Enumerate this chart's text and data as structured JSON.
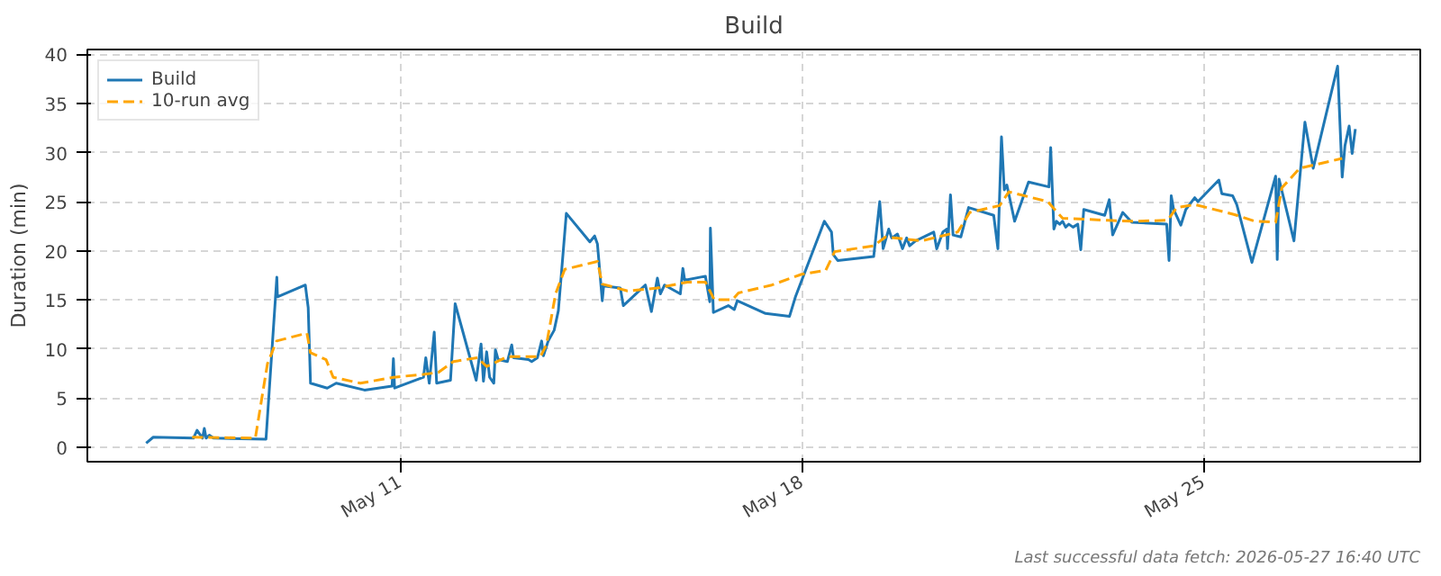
{
  "chart_data": {
    "type": "line",
    "title": "Build",
    "ylabel": "Duration (min)",
    "xlim": [
      "2026-05-05T13:00",
      "2026-05-28T18:30"
    ],
    "ylim": [
      -1.5,
      40.5
    ],
    "xticks": [
      {
        "value": "2026-05-11",
        "label": "May 11"
      },
      {
        "value": "2026-05-18",
        "label": "May 18"
      },
      {
        "value": "2026-05-25",
        "label": "May 25"
      }
    ],
    "yticks": [
      0,
      5,
      10,
      15,
      20,
      25,
      30,
      35,
      40
    ],
    "grid": true,
    "legend": "top left",
    "marker": "none",
    "annotations": [
      "Last successful data fetch: 2026-05-27 16:40 UTC"
    ],
    "series": [
      {
        "name": "Build",
        "color": "#1f77b4",
        "line_style": "solid",
        "x": [
          "2026-05-06T13:36",
          "2026-05-06T16:34",
          "2026-05-07T09:22",
          "2026-05-07T10:53",
          "2026-05-07T13:10",
          "2026-05-07T13:55",
          "2026-05-07T14:40",
          "2026-05-07T16:00",
          "2026-05-07T17:45",
          "2026-05-08T15:43",
          "2026-05-08T20:15",
          "2026-05-08T20:30",
          "2026-05-09T08:10",
          "2026-05-09T09:22",
          "2026-05-09T10:20",
          "2026-05-09T17:20",
          "2026-05-09T21:05",
          "2026-05-10T08:55",
          "2026-05-10T20:27",
          "2026-05-10T21:00",
          "2026-05-10T21:30",
          "2026-05-11T09:35",
          "2026-05-11T10:33",
          "2026-05-11T12:00",
          "2026-05-11T14:05",
          "2026-05-11T15:05",
          "2026-05-11T20:53",
          "2026-05-11T22:50",
          "2026-05-12T07:38",
          "2026-05-12T09:40",
          "2026-05-12T10:40",
          "2026-05-12T12:00",
          "2026-05-12T13:15",
          "2026-05-12T15:00",
          "2026-05-12T15:40",
          "2026-05-12T16:50",
          "2026-05-12T20:40",
          "2026-05-12T22:30",
          "2026-05-12T23:15",
          "2026-05-13T05:30",
          "2026-05-13T06:50",
          "2026-05-13T09:15",
          "2026-05-13T11:00",
          "2026-05-13T11:45",
          "2026-05-13T13:45",
          "2026-05-13T16:15",
          "2026-05-13T18:00",
          "2026-05-13T21:20",
          "2026-05-14T07:10",
          "2026-05-14T09:10",
          "2026-05-14T10:20",
          "2026-05-14T12:22",
          "2026-05-14T12:55",
          "2026-05-14T19:55",
          "2026-05-14T21:10",
          "2026-05-15T06:25",
          "2026-05-15T08:55",
          "2026-05-15T11:25",
          "2026-05-15T12:40",
          "2026-05-15T14:25",
          "2026-05-15T21:00",
          "2026-05-15T22:05",
          "2026-05-15T22:50",
          "2026-05-16T07:30",
          "2026-05-16T09:20",
          "2026-05-16T09:35",
          "2026-05-16T10:50",
          "2026-05-16T17:05",
          "2026-05-16T19:35",
          "2026-05-16T20:50",
          "2026-05-17T08:40",
          "2026-05-17T18:40",
          "2026-05-17T21:10",
          "2026-05-18T09:15",
          "2026-05-18T12:15",
          "2026-05-18T13:00",
          "2026-05-18T14:50",
          "2026-05-19T05:53",
          "2026-05-19T08:25",
          "2026-05-19T09:50",
          "2026-05-19T12:10",
          "2026-05-19T13:25",
          "2026-05-19T15:50",
          "2026-05-19T17:55",
          "2026-05-19T19:40",
          "2026-05-19T20:55",
          "2026-05-19T23:25",
          "2026-05-20T07:00",
          "2026-05-20T08:15",
          "2026-05-20T10:50",
          "2026-05-20T12:30",
          "2026-05-20T12:45",
          "2026-05-20T14:00",
          "2026-05-20T15:05",
          "2026-05-20T18:20",
          "2026-05-20T21:35",
          "2026-05-21T08:05",
          "2026-05-21T09:50",
          "2026-05-21T11:20",
          "2026-05-21T12:30",
          "2026-05-21T13:35",
          "2026-05-21T16:50",
          "2026-05-21T22:40",
          "2026-05-22T07:10",
          "2026-05-22T07:55",
          "2026-05-22T09:15",
          "2026-05-22T10:20",
          "2026-05-22T11:40",
          "2026-05-22T12:55",
          "2026-05-22T14:10",
          "2026-05-22T15:30",
          "2026-05-22T17:15",
          "2026-05-22T19:15",
          "2026-05-22T20:30",
          "2026-05-22T21:45",
          "2026-05-23T06:30",
          "2026-05-23T08:25",
          "2026-05-23T09:50",
          "2026-05-23T14:02",
          "2026-05-23T17:50",
          "2026-05-24T08:25",
          "2026-05-24T09:25",
          "2026-05-24T10:20",
          "2026-05-24T11:20",
          "2026-05-24T14:20",
          "2026-05-24T16:26",
          "2026-05-24T20:10",
          "2026-05-24T21:30",
          "2026-05-25T06:15",
          "2026-05-25T07:30",
          "2026-05-25T12:00",
          "2026-05-25T13:45",
          "2026-05-25T20:05",
          "2026-05-26T06:00",
          "2026-05-26T06:40",
          "2026-05-26T07:25",
          "2026-05-26T13:40",
          "2026-05-26T18:15",
          "2026-05-26T21:43",
          "2026-05-27T07:55",
          "2026-05-27T09:50",
          "2026-05-27T11:00",
          "2026-05-27T12:45",
          "2026-05-27T14:00",
          "2026-05-27T15:20"
        ],
        "values": [
          0.4,
          1.0,
          0.9,
          1.7,
          0.9,
          1.9,
          0.9,
          1.2,
          0.9,
          0.8,
          17.3,
          15.3,
          16.5,
          14.2,
          6.5,
          6.0,
          6.5,
          5.8,
          6.2,
          9.0,
          6.0,
          7.1,
          9.1,
          6.5,
          11.7,
          6.5,
          6.8,
          14.6,
          6.8,
          10.5,
          6.7,
          9.7,
          7.1,
          6.5,
          9.9,
          8.9,
          8.7,
          10.4,
          9.1,
          8.9,
          8.7,
          9.1,
          10.8,
          9.3,
          10.8,
          11.9,
          13.9,
          23.8,
          20.9,
          21.5,
          20.7,
          14.9,
          16.4,
          16.2,
          14.4,
          16.5,
          13.8,
          17.2,
          15.6,
          16.5,
          15.6,
          18.2,
          17.0,
          17.4,
          14.8,
          22.3,
          13.7,
          14.4,
          14.0,
          14.9,
          13.6,
          13.3,
          15.3,
          23.0,
          21.9,
          19.6,
          19.0,
          19.4,
          25.0,
          20.2,
          22.2,
          21.3,
          21.7,
          20.2,
          21.3,
          20.5,
          21.0,
          21.9,
          20.2,
          21.9,
          22.2,
          20.2,
          25.7,
          21.6,
          21.4,
          24.4,
          23.6,
          20.2,
          31.6,
          26.2,
          26.7,
          23.0,
          27.0,
          26.5,
          30.5,
          22.2,
          23.0,
          22.7,
          23.0,
          22.4,
          22.7,
          22.4,
          22.7,
          20.1,
          24.2,
          23.6,
          25.2,
          21.6,
          23.9,
          22.9,
          22.7,
          19.0,
          25.6,
          24.2,
          22.6,
          24.2,
          25.4,
          25.0,
          27.2,
          25.8,
          25.6,
          24.7,
          18.8,
          27.6,
          19.1,
          27.3,
          21.0,
          33.1,
          28.4,
          38.8,
          27.5,
          30.7,
          32.7,
          29.9,
          32.4
        ]
      },
      {
        "name": "10-run avg",
        "color": "#ffa500",
        "line_style": "dashed",
        "x": [
          "2026-05-07T08:50",
          "2026-05-08T11:15",
          "2026-05-08T16:20",
          "2026-05-08T20:10",
          "2026-05-09T08:50",
          "2026-05-09T10:20",
          "2026-05-09T16:50",
          "2026-05-09T19:50",
          "2026-05-10T07:10",
          "2026-05-10T21:00",
          "2026-05-11T09:35",
          "2026-05-11T15:50",
          "2026-05-11T22:05",
          "2026-05-12T08:10",
          "2026-05-12T12:00",
          "2026-05-12T20:40",
          "2026-05-13T10:30",
          "2026-05-13T13:00",
          "2026-05-13T16:50",
          "2026-05-13T20:40",
          "2026-05-14T10:20",
          "2026-05-14T12:22",
          "2026-05-14T22:55",
          "2026-05-15T11:25",
          "2026-05-16T00:00",
          "2026-05-16T07:30",
          "2026-05-16T11:15",
          "2026-05-16T18:50",
          "2026-05-16T21:20",
          "2026-05-17T11:15",
          "2026-05-17T23:45",
          "2026-05-18T09:50",
          "2026-05-18T13:33",
          "2026-05-19T05:53",
          "2026-05-19T10:50",
          "2026-05-20T01:55",
          "2026-05-20T17:00",
          "2026-05-20T22:05",
          "2026-05-21T10:35",
          "2026-05-21T14:25",
          "2026-05-22T06:40",
          "2026-05-22T12:55",
          "2026-05-23T07:48",
          "2026-05-23T17:50",
          "2026-05-24T08:50",
          "2026-05-24T12:40",
          "2026-05-24T20:10",
          "2026-05-25T12:30",
          "2026-05-25T21:20",
          "2026-05-26T06:00",
          "2026-05-26T08:35",
          "2026-05-26T16:05",
          "2026-05-27T09:50"
        ],
        "values": [
          1.0,
          0.9,
          8.5,
          10.8,
          11.6,
          9.6,
          8.9,
          7.1,
          6.5,
          7.1,
          7.4,
          7.6,
          8.7,
          9.1,
          8.2,
          9.2,
          9.2,
          10.4,
          15.6,
          18.1,
          18.9,
          16.6,
          15.9,
          16.2,
          16.8,
          16.8,
          15.0,
          15.0,
          15.7,
          16.5,
          17.6,
          18.0,
          19.9,
          20.5,
          21.4,
          21.0,
          21.9,
          23.9,
          24.6,
          26.0,
          25.0,
          23.3,
          23.1,
          23.0,
          23.1,
          24.4,
          24.7,
          23.7,
          23.0,
          22.9,
          26.4,
          28.4,
          29.4
        ]
      }
    ]
  }
}
